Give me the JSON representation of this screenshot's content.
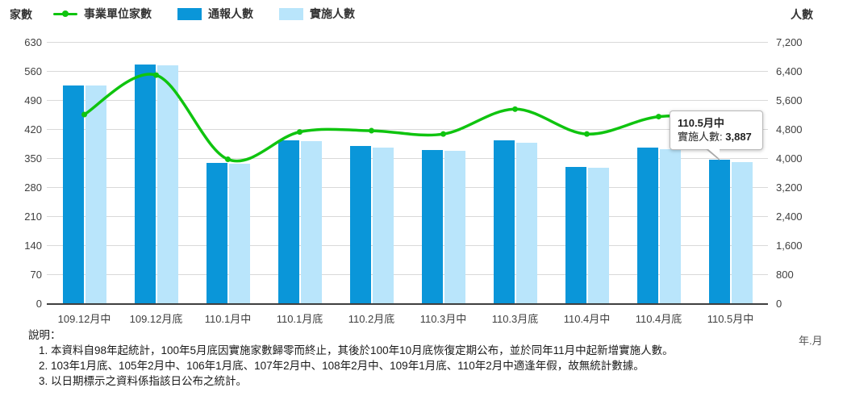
{
  "chart_data": {
    "type": "combo-bar-line",
    "categories": [
      "109.12月中",
      "109.12月底",
      "110.1月中",
      "110.1月底",
      "110.2月底",
      "110.3月中",
      "110.3月底",
      "110.4月中",
      "110.4月底",
      "110.5月中"
    ],
    "series": [
      {
        "name": "事業單位家數",
        "type": "line",
        "axis": "left",
        "color": "#0fc40f",
        "values": [
          455,
          550,
          347,
          413,
          416,
          408,
          468,
          408,
          450,
          445
        ]
      },
      {
        "name": "通報人數",
        "type": "bar",
        "axis": "right",
        "color": "#0a96d9",
        "values": [
          6010,
          6570,
          3860,
          4500,
          4340,
          4220,
          4480,
          3760,
          4290,
          3950
        ]
      },
      {
        "name": "實施人數",
        "type": "bar",
        "axis": "right",
        "color": "#b9e5fb",
        "values": [
          5990,
          6550,
          3840,
          4460,
          4300,
          4200,
          4420,
          3740,
          4250,
          3887
        ]
      }
    ],
    "left_axis": {
      "title": "家數",
      "min": 0,
      "max": 630,
      "step": 70,
      "ticks": [
        "630",
        "560",
        "490",
        "420",
        "350",
        "280",
        "210",
        "140",
        "70",
        "0"
      ]
    },
    "right_axis": {
      "title": "人數",
      "min": 0,
      "max": 7200,
      "step": 800,
      "ticks": [
        "7,200",
        "6,400",
        "5,600",
        "4,800",
        "4,000",
        "3,200",
        "2,400",
        "1,600",
        "800",
        "0"
      ]
    },
    "x_axis": {
      "unit_label": "年.月"
    },
    "grid": true,
    "legend_position": "top-left"
  },
  "legend": {
    "items": [
      {
        "label": "事業單位家數",
        "marker": "line-dot",
        "color": "#0fc40f"
      },
      {
        "label": "通報人數",
        "marker": "square",
        "color": "#0a96d9"
      },
      {
        "label": "實施人數",
        "marker": "square",
        "color": "#b9e5fb"
      }
    ]
  },
  "tooltip": {
    "title": "110.5月中",
    "label": "實施人數:",
    "value": "3,887"
  },
  "notes": {
    "heading": "說明：",
    "items": [
      "1. 本資料自98年起統計，100年5月底因實施家數歸零而終止，其後於100年10月底恢復定期公布，並於同年11月中起新增實施人數。",
      "2. 103年1月底、105年2月中、106年1月底、107年2月中、108年2月中、109年1月底、110年2月中適逢年假，故無統計數據。",
      "3. 以日期標示之資料係指該日公布之統計。"
    ]
  }
}
